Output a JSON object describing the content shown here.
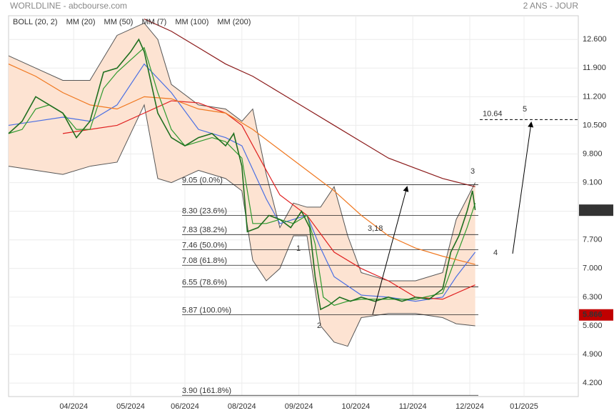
{
  "chart_data": {
    "type": "line",
    "title": "WORLDLINE - abcbourse.com",
    "subtitle": "2 ANS - JOUR",
    "xlim": [
      0,
      210
    ],
    "ylim": [
      3.87,
      13.18
    ],
    "grid": true,
    "xticks": [
      {
        "value": 24,
        "label": "04/2024"
      },
      {
        "value": 45,
        "label": "05/2024"
      },
      {
        "value": 65,
        "label": "06/2024"
      },
      {
        "value": 86,
        "label": "08/2024"
      },
      {
        "value": 107,
        "label": "09/2024"
      },
      {
        "value": 128,
        "label": "10/2024"
      },
      {
        "value": 149,
        "label": "11/2024"
      },
      {
        "value": 170,
        "label": "12/2024"
      },
      {
        "value": 190,
        "label": "01/2025"
      }
    ],
    "yticks": [
      {
        "value": 12.6,
        "label": "12.600"
      },
      {
        "value": 11.9,
        "label": "11.900"
      },
      {
        "value": 11.2,
        "label": "11.200"
      },
      {
        "value": 10.5,
        "label": "10.500"
      },
      {
        "value": 9.8,
        "label": "9.800"
      },
      {
        "value": 9.1,
        "label": "9.100"
      },
      {
        "value": 8.4,
        "label": "8.400"
      },
      {
        "value": 7.7,
        "label": "7.700"
      },
      {
        "value": 7.0,
        "label": "7.000"
      },
      {
        "value": 6.3,
        "label": "6.300"
      },
      {
        "value": 5.6,
        "label": "5.600"
      },
      {
        "value": 4.9,
        "label": "4.900"
      },
      {
        "value": 4.2,
        "label": "4.200"
      }
    ],
    "band": {
      "name": "BOLL (20, 2)",
      "color": "#555555",
      "fill": "#fde3d2",
      "x": [
        0,
        10,
        20,
        30,
        40,
        50,
        55,
        60,
        70,
        80,
        86,
        90,
        95,
        100,
        105,
        110,
        115,
        120,
        125,
        130,
        140,
        150,
        160,
        165,
        172
      ],
      "upper": [
        12.2,
        11.9,
        11.6,
        11.6,
        12.7,
        13.0,
        12.6,
        11.5,
        11.0,
        10.9,
        10.6,
        10.9,
        9.3,
        8.0,
        8.6,
        8.5,
        8.5,
        9.0,
        7.8,
        6.9,
        6.7,
        6.7,
        6.9,
        8.2,
        9.1
      ],
      "lower": [
        9.5,
        9.4,
        9.3,
        9.5,
        9.6,
        11.0,
        9.2,
        9.1,
        9.4,
        9.2,
        8.9,
        7.2,
        6.7,
        7.0,
        7.8,
        7.8,
        5.6,
        5.2,
        5.1,
        5.8,
        5.9,
        5.9,
        5.8,
        5.65,
        5.6
      ]
    },
    "series": [
      {
        "name": "MM (20)",
        "color": "#4a6fe3",
        "x": [
          0,
          10,
          20,
          30,
          40,
          50,
          60,
          70,
          80,
          86,
          95,
          100,
          110,
          115,
          120,
          130,
          140,
          150,
          160,
          165,
          172
        ],
        "values": [
          10.5,
          10.6,
          10.7,
          10.6,
          11.0,
          12.0,
          11.3,
          10.4,
          10.2,
          10.0,
          8.7,
          8.1,
          8.3,
          7.5,
          6.8,
          6.35,
          6.3,
          6.2,
          6.3,
          6.8,
          7.4
        ]
      },
      {
        "name": "MM (50)",
        "color": "#e02020",
        "x": [
          20,
          30,
          40,
          50,
          60,
          70,
          80,
          86,
          95,
          100,
          110,
          120,
          130,
          140,
          150,
          160,
          172
        ],
        "values": [
          10.3,
          10.4,
          10.5,
          10.8,
          11.1,
          11.05,
          10.8,
          10.5,
          9.4,
          8.8,
          8.3,
          7.4,
          7.0,
          6.7,
          6.3,
          6.25,
          6.6
        ]
      },
      {
        "name": "MM (7)",
        "color": "#2e9a2e",
        "x": [
          0,
          5,
          10,
          15,
          20,
          25,
          30,
          35,
          40,
          45,
          50,
          55,
          60,
          65,
          70,
          75,
          80,
          86,
          90,
          95,
          100,
          105,
          110,
          113,
          116,
          120,
          125,
          130,
          140,
          150,
          160,
          165,
          169,
          172
        ],
        "values": [
          10.3,
          10.4,
          10.9,
          11.0,
          10.8,
          10.4,
          10.4,
          11.4,
          11.8,
          12.1,
          12.4,
          11.3,
          10.4,
          10.0,
          10.1,
          10.2,
          10.1,
          9.7,
          8.1,
          8.1,
          8.2,
          8.1,
          8.3,
          7.6,
          6.3,
          6.1,
          6.2,
          6.25,
          6.25,
          6.25,
          6.4,
          7.3,
          8.0,
          8.6
        ]
      },
      {
        "name": "MM (100)",
        "color": "#f07820",
        "x": [
          0,
          10,
          20,
          30,
          40,
          50,
          60,
          70,
          80,
          90,
          100,
          110,
          120,
          130,
          140,
          150,
          160,
          172
        ],
        "values": [
          12.0,
          11.7,
          11.3,
          11.0,
          10.9,
          11.2,
          11.15,
          10.9,
          10.8,
          10.4,
          9.9,
          9.4,
          8.9,
          8.3,
          7.8,
          7.5,
          7.3,
          7.1
        ]
      },
      {
        "name": "MM (200)",
        "color": "#8b1a1a",
        "x": [
          50,
          60,
          70,
          80,
          90,
          100,
          110,
          120,
          130,
          140,
          150,
          160,
          172
        ],
        "values": [
          13.1,
          12.8,
          12.4,
          12.0,
          11.7,
          11.3,
          10.9,
          10.5,
          10.1,
          9.7,
          9.45,
          9.2,
          9.0
        ]
      }
    ],
    "price": {
      "color": "#1f6f1f",
      "x": [
        0,
        5,
        10,
        15,
        20,
        25,
        30,
        35,
        40,
        45,
        48,
        50,
        55,
        60,
        65,
        70,
        75,
        80,
        83,
        86,
        88,
        92,
        96,
        100,
        104,
        108,
        111,
        113,
        115,
        118,
        122,
        126,
        130,
        135,
        140,
        145,
        150,
        155,
        160,
        163,
        166,
        169,
        171,
        172
      ],
      "values": [
        10.3,
        10.6,
        11.2,
        11.0,
        10.8,
        10.2,
        10.6,
        11.8,
        11.9,
        12.3,
        12.6,
        12.3,
        10.8,
        10.2,
        10.0,
        10.2,
        10.3,
        10.0,
        10.3,
        9.5,
        7.9,
        8.0,
        8.3,
        8.2,
        8.0,
        8.4,
        8.0,
        6.8,
        6.0,
        6.1,
        6.3,
        6.2,
        6.3,
        6.2,
        6.3,
        6.2,
        6.3,
        6.25,
        6.5,
        7.4,
        7.8,
        8.4,
        8.9,
        8.43
      ]
    },
    "fibonacci": [
      {
        "value": 9.05,
        "label": "9.05  (0.0%)"
      },
      {
        "value": 8.3,
        "label": "8.30  (23.6%)"
      },
      {
        "value": 7.83,
        "label": "7.83  (38.2%)"
      },
      {
        "value": 7.46,
        "label": "7.46  (50.0%)"
      },
      {
        "value": 7.08,
        "label": "7.08  (61.8%)"
      },
      {
        "value": 6.55,
        "label": "6.55  (78.6%)"
      },
      {
        "value": 5.87,
        "label": "5.87  (100.0%)"
      },
      {
        "value": 3.9,
        "label": "3.90  (161.8%)"
      }
    ],
    "target": {
      "value": 10.64,
      "label": "10.64"
    },
    "waves": [
      "1",
      "2",
      "3",
      "4",
      "5"
    ],
    "wave_gap": "3,18",
    "last_price": {
      "value": 8.426,
      "label": "8.426"
    },
    "low_price": {
      "value": 5.866,
      "label": "5.866"
    }
  }
}
